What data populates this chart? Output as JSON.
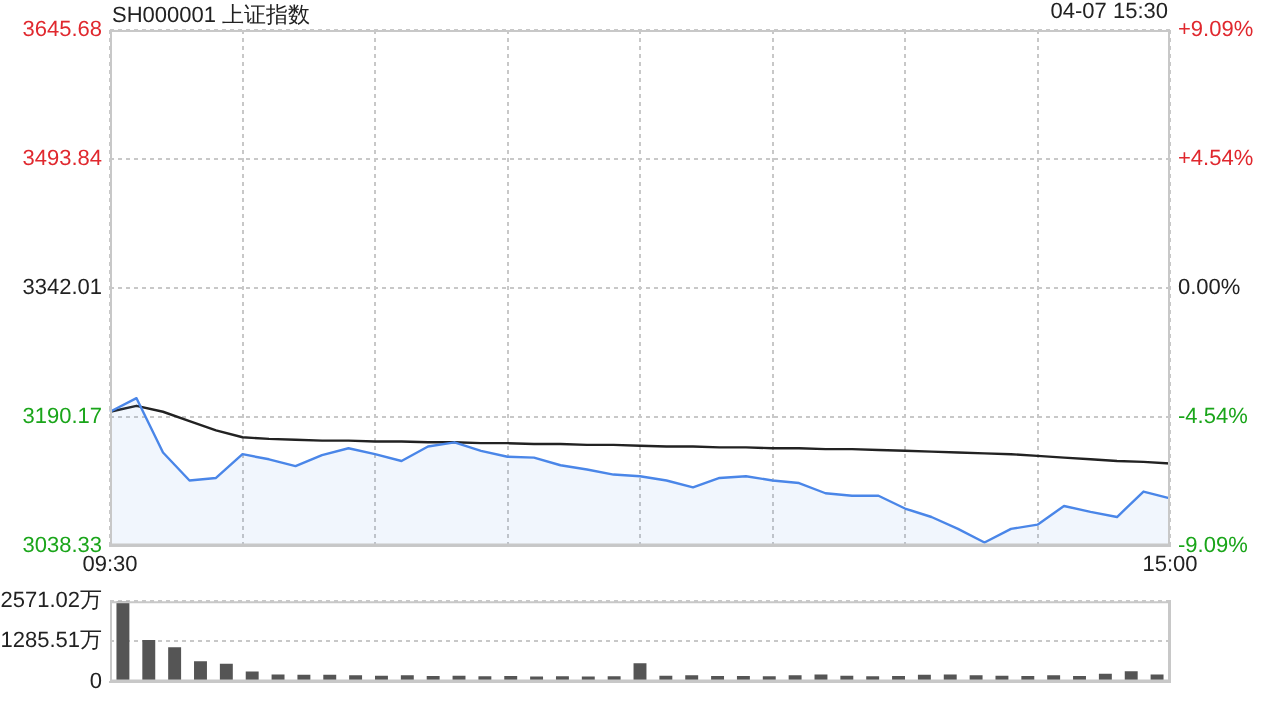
{
  "chart_data": [
    {
      "type": "line",
      "title": "SH000001 上证指数",
      "subtitle": "04-07 15:30",
      "categories": [
        "09:30",
        null,
        null,
        null,
        null,
        null,
        null,
        null,
        null,
        null,
        null,
        null,
        null,
        null,
        null,
        null,
        null,
        null,
        null,
        null,
        null,
        null,
        null,
        null,
        null,
        null,
        null,
        null,
        null,
        null,
        null,
        null,
        null,
        null,
        null,
        null,
        null,
        null,
        null,
        null,
        "15:00"
      ],
      "series": [
        {
          "type": "area",
          "color": "#4a86e8",
          "values": [
            3196,
            3212,
            3148,
            3115,
            3118,
            3146,
            3140,
            3132,
            3145,
            3153,
            3146,
            3138,
            3155,
            3160,
            3150,
            3143,
            3142,
            3133,
            3128,
            3122,
            3120,
            3115,
            3107,
            3118,
            3120,
            3115,
            3112,
            3100,
            3097,
            3097,
            3082,
            3072,
            3058,
            3042,
            3058,
            3063,
            3085,
            3078,
            3072,
            3102,
            3094
          ]
        },
        {
          "type": "line",
          "color": "#222222",
          "values": [
            3196,
            3203,
            3196,
            3185,
            3174,
            3166,
            3164,
            3163,
            3162,
            3162,
            3161,
            3161,
            3160,
            3160,
            3159,
            3159,
            3158,
            3158,
            3157,
            3157,
            3156,
            3155,
            3155,
            3154,
            3154,
            3153,
            3153,
            3152,
            3152,
            3151,
            3150,
            3149,
            3148,
            3147,
            3146,
            3144,
            3142,
            3140,
            3138,
            3137,
            3135
          ]
        }
      ],
      "ylim": [
        3038.33,
        3645.68
      ],
      "yticks": [
        3038.33,
        3190.17,
        3342.01,
        3493.84,
        3645.68
      ],
      "y2lim": [
        -9.09,
        9.09
      ],
      "y2ticks": [
        {
          "value": -9.09,
          "label": "-9.09%"
        },
        {
          "value": -4.54,
          "label": "-4.54%"
        },
        {
          "value": 0,
          "label": "0.00%"
        },
        {
          "value": 4.54,
          "label": "+4.54%"
        },
        {
          "value": 9.09,
          "label": "+9.09%"
        }
      ],
      "grid": true,
      "legend": false,
      "marker": "none"
    },
    {
      "type": "bar",
      "categories": [
        null,
        null,
        null,
        null,
        null,
        null,
        null,
        null,
        null,
        null,
        null,
        null,
        null,
        null,
        null,
        null,
        null,
        null,
        null,
        null,
        null,
        null,
        null,
        null,
        null,
        null,
        null,
        null,
        null,
        null,
        null,
        null,
        null,
        null,
        null,
        null,
        null,
        null,
        null,
        null,
        null
      ],
      "color": "#555555",
      "values": [
        2570,
        1330,
        1100,
        650,
        570,
        320,
        230,
        220,
        220,
        200,
        190,
        200,
        180,
        190,
        170,
        180,
        160,
        170,
        160,
        170,
        590,
        190,
        200,
        180,
        180,
        170,
        200,
        230,
        190,
        170,
        180,
        220,
        230,
        200,
        190,
        180,
        200,
        180,
        250,
        330,
        230
      ],
      "ylim": [
        0,
        2571.02
      ],
      "yticks": [
        0,
        {
          "value": 1285.51,
          "label": "1285.51万"
        },
        {
          "value": 2571.02,
          "label": "2571.02万"
        }
      ],
      "grid": "y",
      "legend": false
    }
  ]
}
